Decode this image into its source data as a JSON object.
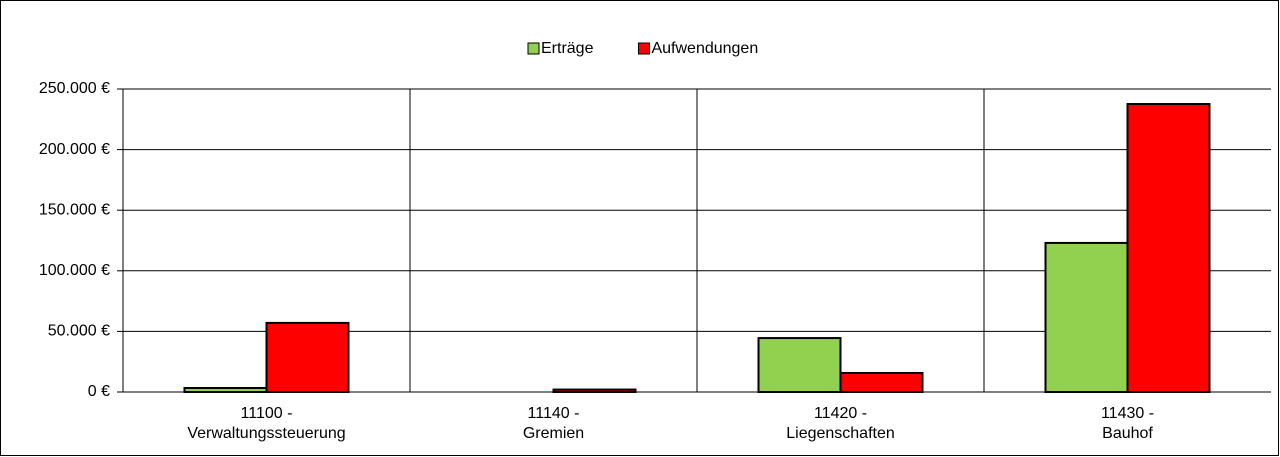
{
  "chart_data": {
    "type": "bar",
    "categories": [
      [
        "11100 -",
        "Verwaltungssteuerung"
      ],
      [
        "11140 -",
        "Gremien"
      ],
      [
        "11420 -",
        "Liegenschaften"
      ],
      [
        "11430 -",
        "Bauhof"
      ]
    ],
    "series": [
      {
        "name": "Erträge",
        "color": "#92d050",
        "values": [
          3300,
          0,
          44500,
          123000
        ]
      },
      {
        "name": "Aufwendungen",
        "color": "#ff0000",
        "values": [
          57000,
          2000,
          15700,
          237600
        ]
      }
    ],
    "ylim": [
      0,
      250000
    ],
    "yticks": [
      {
        "value": 0,
        "label": "0 €"
      },
      {
        "value": 50000,
        "label": "50.000 €"
      },
      {
        "value": 100000,
        "label": "100.000 €"
      },
      {
        "value": 150000,
        "label": "150.000 €"
      },
      {
        "value": 200000,
        "label": "200.000 €"
      },
      {
        "value": 250000,
        "label": "250.000 €"
      }
    ],
    "grid": true,
    "legend": "top"
  }
}
